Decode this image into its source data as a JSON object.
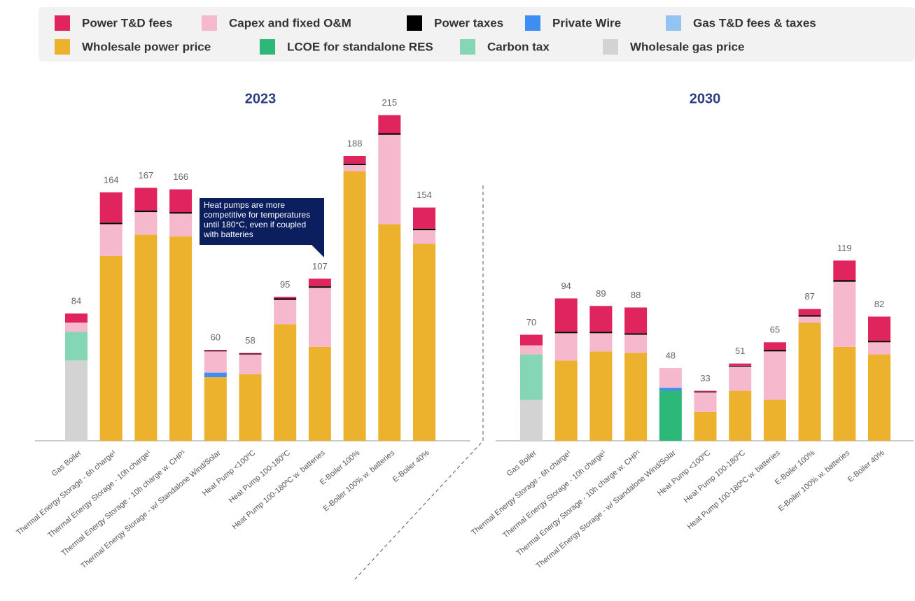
{
  "chart_data": {
    "type": "bar",
    "stacked": true,
    "series": [
      {
        "name": "Power T&D fees",
        "color": "#e0245e",
        "values": [
          [
            6,
            20,
            15,
            15,
            0.5,
            0.5,
            1,
            5,
            5,
            12,
            14
          ],
          [
            7,
            22,
            17,
            17,
            null,
            0.5,
            1.5,
            5,
            4,
            13,
            16
          ]
        ]
      },
      {
        "name": "Capex and fixed O&M",
        "color": "#f5b8cc",
        "values": [
          [
            6,
            21,
            15,
            15,
            14,
            13,
            16,
            39,
            4,
            59,
            9
          ],
          [
            6,
            18,
            12,
            12,
            13,
            13,
            16,
            32,
            4,
            43,
            8
          ]
        ]
      },
      {
        "name": "Power taxes",
        "color": "#000000",
        "values": [
          [
            null,
            1,
            1,
            1,
            0.5,
            0.5,
            1,
            1,
            1,
            1,
            1
          ],
          [
            null,
            1,
            1,
            1,
            null,
            0.5,
            0.5,
            1,
            1,
            1,
            1
          ]
        ]
      },
      {
        "name": "Private Wire",
        "color": "#3d8ef0",
        "values": [
          [
            null,
            null,
            null,
            null,
            3,
            null,
            null,
            null,
            null,
            null,
            null
          ],
          [
            null,
            null,
            null,
            null,
            2,
            null,
            null,
            null,
            null,
            null,
            null
          ]
        ]
      },
      {
        "name": "Gas T&D fees & taxes",
        "color": "#93c3f2",
        "values": [
          [
            null,
            null,
            null,
            null,
            null,
            null,
            null,
            null,
            null,
            null,
            null
          ],
          [
            null,
            null,
            null,
            null,
            null,
            null,
            null,
            null,
            null,
            null,
            null
          ]
        ]
      },
      {
        "name": "Wholesale power price",
        "color": "#ecb22e",
        "values": [
          [
            null,
            122,
            136,
            135,
            42,
            44,
            77,
            62,
            178,
            143,
            130
          ],
          [
            null,
            53,
            59,
            58,
            null,
            19,
            33,
            27,
            78,
            62,
            57
          ]
        ]
      },
      {
        "name": "LCOE for standalone RES",
        "color": "#2db87a",
        "values": [
          [
            null,
            null,
            null,
            null,
            null,
            null,
            null,
            null,
            null,
            null,
            null
          ],
          [
            null,
            null,
            null,
            null,
            33,
            null,
            null,
            null,
            null,
            null,
            null
          ]
        ]
      },
      {
        "name": "Carbon tax",
        "color": "#85d6b4",
        "values": [
          [
            19,
            null,
            null,
            null,
            null,
            null,
            null,
            null,
            null,
            null,
            null
          ],
          [
            30,
            null,
            null,
            null,
            null,
            null,
            null,
            null,
            null,
            null,
            null
          ]
        ]
      },
      {
        "name": "Wholesale gas price",
        "color": "#d3d3d3",
        "values": [
          [
            53,
            null,
            null,
            null,
            null,
            null,
            null,
            null,
            null,
            null,
            null
          ],
          [
            27,
            null,
            null,
            null,
            null,
            null,
            null,
            null,
            null,
            null,
            null
          ]
        ]
      }
    ],
    "panels": [
      {
        "title": "2023",
        "categories": [
          "Gas Boiler",
          "Thermal Energy Storage - 6h charge¹",
          "Thermal Energy Storage - 10h charge¹",
          "Thermal Energy Storage - 10h charge w. CHP¹",
          "Thermal Energy Storage - w/ Standalone Wind/Solar",
          "Heat Pump <100ºC",
          "Heat Pump 100-180ºC",
          "Heat Pump 100-180ºC w. batteries",
          "E-Boiler 100%",
          "E-Boiler 100% w. batteries",
          "E-Boiler 40%"
        ],
        "totals": [
          84,
          164,
          167,
          166,
          60,
          58,
          95,
          107,
          188,
          215,
          154
        ],
        "annotation": "Heat pumps are more competitive for temperatures until 180°C, even if coupled with batteries"
      },
      {
        "title": "2030",
        "categories": [
          "Gas Boiler",
          "Thermal Energy Storage - 6h charge¹",
          "Thermal Energy Storage - 10h charge¹",
          "Thermal Energy Storage - 10h charge w. CHP¹",
          "Thermal Energy Storage - w/ Standalone Wind/Solar",
          "Heat Pump <100ºC",
          "Heat Pump 100-180ºC",
          "Heat Pump 100-180ºC w. batteries",
          "E-Boiler 100%",
          "E-Boiler 100% w. batteries",
          "E-Boiler 40%"
        ],
        "totals": [
          70,
          94,
          89,
          88,
          48,
          33,
          51,
          65,
          87,
          119,
          82
        ]
      }
    ]
  }
}
